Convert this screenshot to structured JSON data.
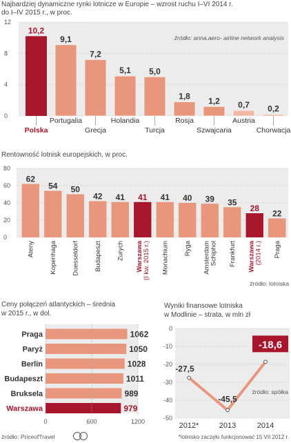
{
  "colors": {
    "bar": "#e8967c",
    "barLight": "#f3b8a5",
    "highlight": "#a8162c",
    "panel": "#ececec",
    "grid": "#cfcfcf",
    "dark": "#333333"
  },
  "section1": {
    "title_line1": "Najbardziej dynamiczne rynki lotnicze w Europie – wzrost ruchu I–VI 2014 r.",
    "title_line2": "do I–IV 2015 r., w proc.",
    "source": "źródło: anna.aero- airline network analysis"
  },
  "section2": {
    "title": "Rentowność lotnisk europejskich, w proc.",
    "source": "źródło: lotniska"
  },
  "section3": {
    "title_line1": "Ceny połączeń atlantyckich – średnia",
    "title_line2": "w 2015 r., w dol.",
    "source": "źródło: PriceofTravel"
  },
  "section4": {
    "title_line1": "Wyniki finansowe lotniska",
    "title_line2": "w Modlinie – strata, w mln zł",
    "source": "źródło: spółka",
    "footnote": "*lotnisko zaczęło funkcjonować 15 VII 2012 r."
  },
  "chart_data": [
    {
      "type": "bar",
      "title": "Najbardziej dynamiczne rynki lotnicze w Europie – wzrost ruchu I–VI 2014 r. do I–IV 2015 r., w proc.",
      "categories": [
        "Polska",
        "Portugalia",
        "Grecja",
        "Holandia",
        "Turcja",
        "Rosja",
        "Szwajcaria",
        "Austria",
        "Chorwacja"
      ],
      "values": [
        10.2,
        9.1,
        7.2,
        5.1,
        5.0,
        1.8,
        1.2,
        0.7,
        0.2
      ],
      "value_labels": [
        "10,2",
        "9,1",
        "7,2",
        "5,1",
        "5,0",
        "1,8",
        "1,2",
        "0,7",
        "0,2"
      ],
      "highlight": "Polska",
      "ylim": [
        0,
        12
      ],
      "yticks": [
        "0",
        "4",
        "8",
        "12"
      ],
      "grid": true
    },
    {
      "type": "bar",
      "title": "Rentowność lotnisk europejskich, w proc.",
      "categories": [
        "Ateny",
        "Kopenhaga",
        "Duesseldorf",
        "Budapeszt",
        "Zurych",
        "Warszawa (I kw. 2015 r.)",
        "Monachium",
        "Ryga",
        "Amsterdam Schiphol",
        "Frankfurt",
        "Warszawa (2014 r.)",
        "Praga"
      ],
      "tick_labels": [
        [
          "Ateny"
        ],
        [
          "Kopenhaga"
        ],
        [
          "Duesseldorf"
        ],
        [
          "Budapeszt"
        ],
        [
          "Zurych"
        ],
        [
          "Warszawa",
          "(I kw. 2015 r.)"
        ],
        [
          "Monachium"
        ],
        [
          "Ryga"
        ],
        [
          "Amsterdam",
          "Schiphol"
        ],
        [
          "Frankfurt"
        ],
        [
          "Warszawa",
          "(2014 r.)"
        ],
        [
          "Praga"
        ]
      ],
      "values": [
        62,
        54,
        50,
        42,
        41,
        41,
        41,
        40,
        39,
        35,
        28,
        22
      ],
      "highlight_index": [
        5,
        10
      ],
      "ylim": [
        0,
        80
      ],
      "yticks": [
        "0",
        "20",
        "40",
        "60",
        "80"
      ],
      "grid": true
    },
    {
      "type": "bar",
      "orientation": "horizontal",
      "title": "Ceny połączeń atlantyckich – średnia w 2015 r., w dol.",
      "categories": [
        "Praga",
        "Paryż",
        "Berlin",
        "Budapeszt",
        "Bruksela",
        "Warszawa"
      ],
      "values": [
        1062,
        1050,
        1028,
        1011,
        989,
        979
      ],
      "highlight": "Warszawa",
      "xlim": [
        0,
        1200
      ],
      "xticks": [
        "0",
        "600",
        "1200"
      ]
    },
    {
      "type": "line",
      "title": "Wyniki finansowe lotniska w Modlinie – strata, w mln zł",
      "categories": [
        "2012*",
        "2013",
        "2014"
      ],
      "values": [
        -27.5,
        -45.5,
        -18.6
      ],
      "value_labels": [
        "-27,5",
        "-45,5",
        "-18,6"
      ],
      "ylim": [
        -50,
        0
      ],
      "yticks": [
        "0",
        "-10",
        "-20",
        "-30",
        "-40",
        "-50"
      ],
      "grid": true
    }
  ]
}
